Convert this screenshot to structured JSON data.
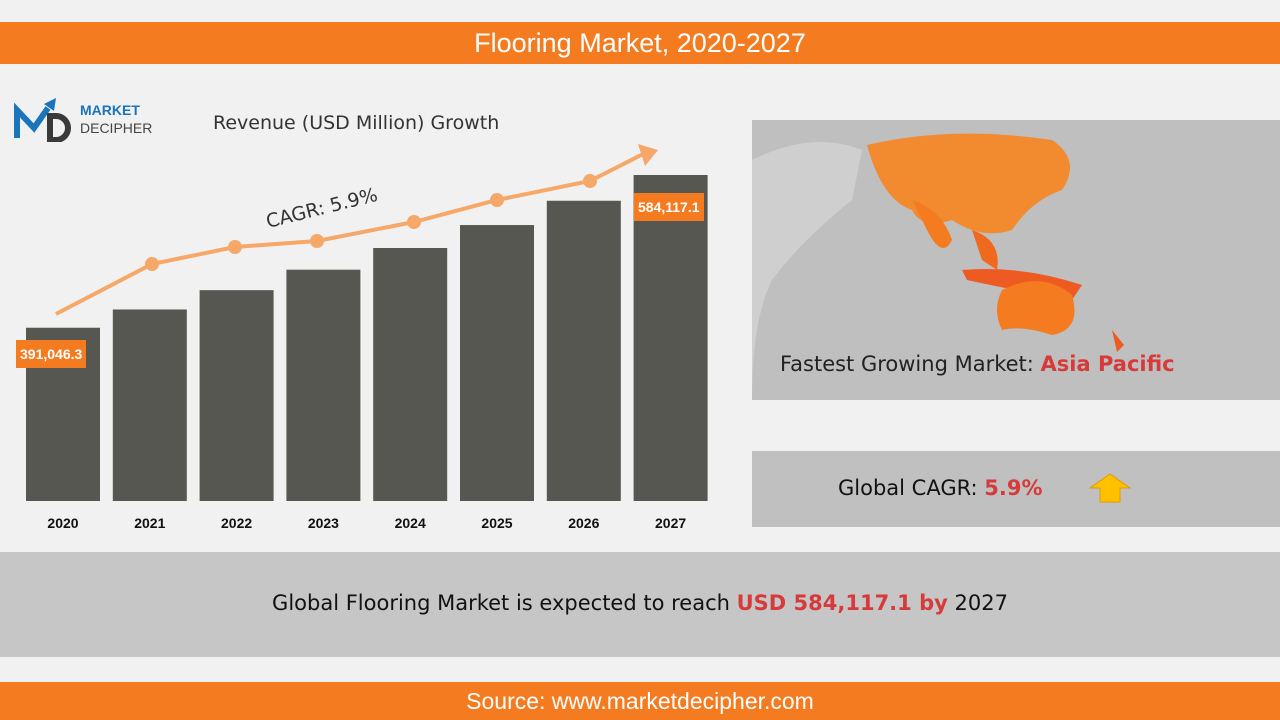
{
  "header": {
    "title": "Flooring Market, 2020-2027"
  },
  "logo": {
    "line1": "MARKET",
    "line2": "DECIPHER"
  },
  "chart_data": {
    "type": "bar",
    "title": "Revenue (USD Million) Growth",
    "categories": [
      "2020",
      "2021",
      "2022",
      "2023",
      "2024",
      "2025",
      "2026",
      "2027"
    ],
    "values": [
      391046.3,
      414118,
      438551,
      464425,
      491826,
      520843,
      551572,
      584117.1
    ],
    "data_labels": {
      "first": "391,046.3",
      "last": "584,117.1"
    },
    "annotation": "CAGR: 5.9%",
    "ylim": [
      172000,
      600000
    ],
    "colors": {
      "bar": "#575751",
      "trend": "#f6a869",
      "label": "#f47b20"
    }
  },
  "map": {
    "label": "Fastest Growing Market: ",
    "region": "Asia Pacific"
  },
  "cagr": {
    "label": "Global CAGR: ",
    "value": "5.9%",
    "icon": "up-arrow-icon"
  },
  "summary": {
    "pre": "Global Flooring Market is expected to reach ",
    "amount": "USD 584,117.1  by",
    "post": " 2027"
  },
  "footer": {
    "source": "Source: www.marketdecipher.com"
  }
}
